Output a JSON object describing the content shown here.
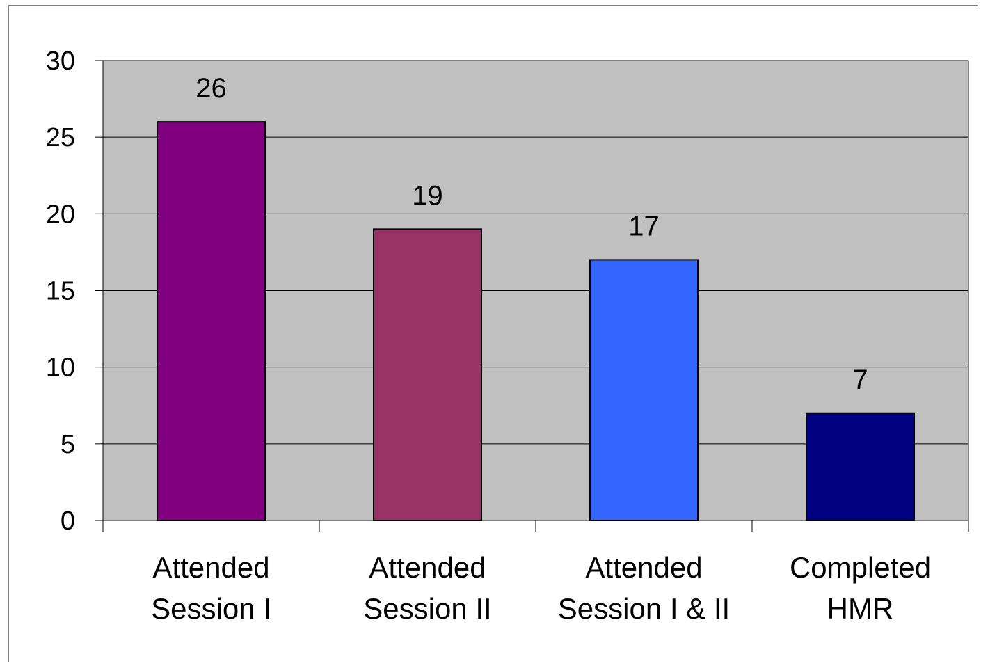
{
  "chart_data": {
    "type": "bar",
    "title": "",
    "xlabel": "",
    "ylabel": "",
    "categories": [
      [
        "Attended",
        "Session I"
      ],
      [
        "Attended",
        "Session II"
      ],
      [
        "Attended",
        "Session I & II"
      ],
      [
        "Completed",
        "HMR"
      ]
    ],
    "values": [
      26,
      19,
      17,
      7
    ],
    "data_labels": [
      "26",
      "19",
      "17",
      "7"
    ],
    "bar_colors": [
      "#800080",
      "#993366",
      "#3366FF",
      "#000080"
    ],
    "ylim": [
      0,
      30
    ],
    "yticks": [
      0,
      5,
      10,
      15,
      20,
      25,
      30
    ],
    "plot_background": "#C0C0C0",
    "grid": true,
    "legend": "none"
  }
}
